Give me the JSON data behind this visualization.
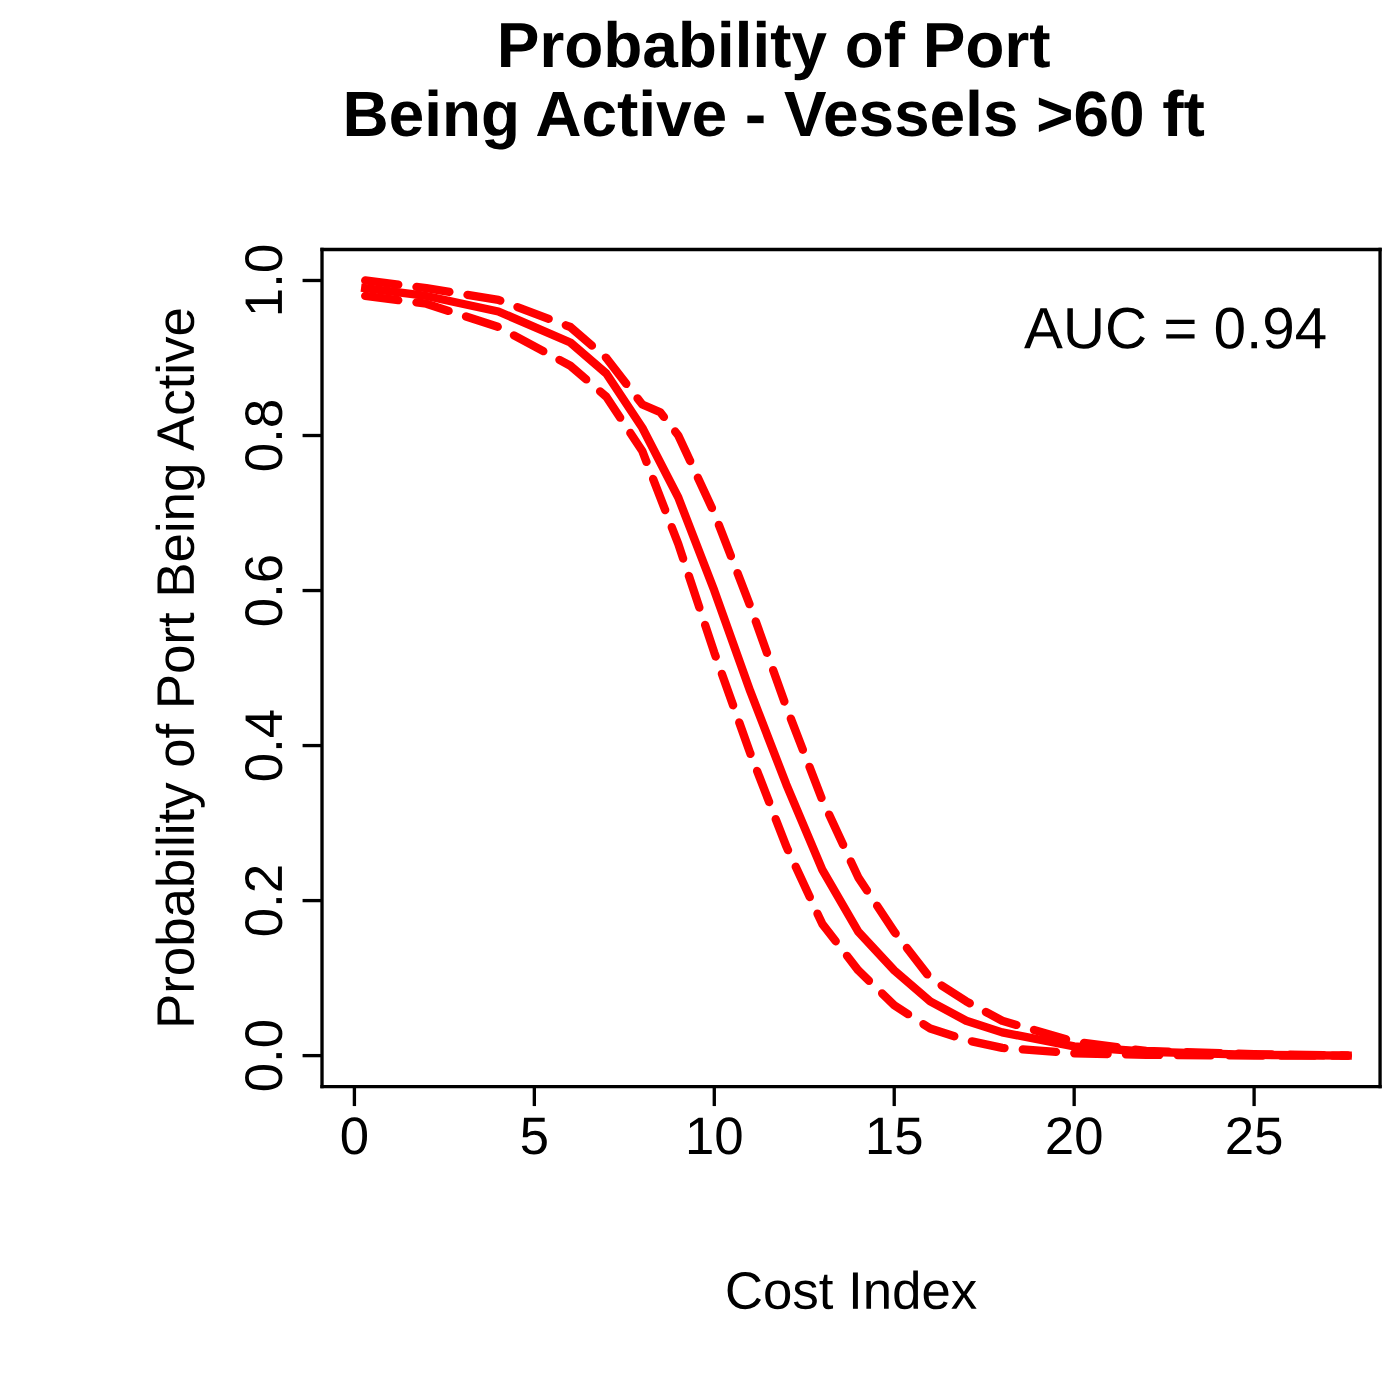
{
  "chart_data": {
    "type": "line",
    "title": "Probability of Port\nBeing Active - Vessels >60 ft",
    "xlabel": "Cost Index",
    "ylabel": "Probability of Port Being Active",
    "annotations": [
      "AUC = 0.94"
    ],
    "xlim": [
      -0.9,
      28.5
    ],
    "ylim": [
      -0.04,
      1.04
    ],
    "xticks": [
      0,
      5,
      10,
      15,
      20,
      25
    ],
    "yticks": [
      {
        "value": 0,
        "label": "0.0"
      },
      {
        "value": 0.2,
        "label": "0.2"
      },
      {
        "value": 0.4,
        "label": "0.4"
      },
      {
        "value": 0.6,
        "label": "0.6"
      },
      {
        "value": 0.8,
        "label": "0.8"
      },
      {
        "value": 1,
        "label": "1.0"
      }
    ],
    "grid": false,
    "legend": false,
    "series": [
      {
        "color": "#ff0000",
        "line_style": "solid",
        "x": [
          0.3,
          2,
          4,
          6,
          7,
          8,
          9,
          10,
          11,
          12,
          13,
          14,
          15,
          16,
          17,
          18,
          20,
          22,
          25,
          27.6
        ],
        "values": [
          0.99,
          0.98,
          0.96,
          0.92,
          0.88,
          0.81,
          0.72,
          0.6,
          0.47,
          0.35,
          0.24,
          0.16,
          0.11,
          0.07,
          0.045,
          0.03,
          0.012,
          0.005,
          0.001,
          0.0
        ]
      },
      {
        "color": "#ff0000",
        "line_style": "dashed",
        "x": [
          0.3,
          2,
          4,
          6,
          7,
          8,
          8.5,
          9,
          10,
          11,
          12,
          13,
          14,
          15,
          16,
          17,
          18,
          20,
          22,
          25,
          27.6
        ],
        "values": [
          1.0,
          0.99,
          0.975,
          0.94,
          0.9,
          0.84,
          0.83,
          0.8,
          0.7,
          0.58,
          0.45,
          0.33,
          0.23,
          0.16,
          0.1,
          0.07,
          0.045,
          0.018,
          0.006,
          0.002,
          0.0
        ]
      },
      {
        "color": "#ff0000",
        "line_style": "dashed",
        "x": [
          0.3,
          2,
          4,
          6,
          7,
          8,
          9,
          10,
          11,
          12,
          13,
          14,
          15,
          16,
          17,
          18,
          20,
          22,
          25,
          27.6
        ],
        "values": [
          0.98,
          0.97,
          0.94,
          0.89,
          0.85,
          0.78,
          0.66,
          0.52,
          0.39,
          0.27,
          0.17,
          0.11,
          0.065,
          0.035,
          0.02,
          0.01,
          0.003,
          0.001,
          0.0,
          0.0
        ]
      }
    ]
  }
}
